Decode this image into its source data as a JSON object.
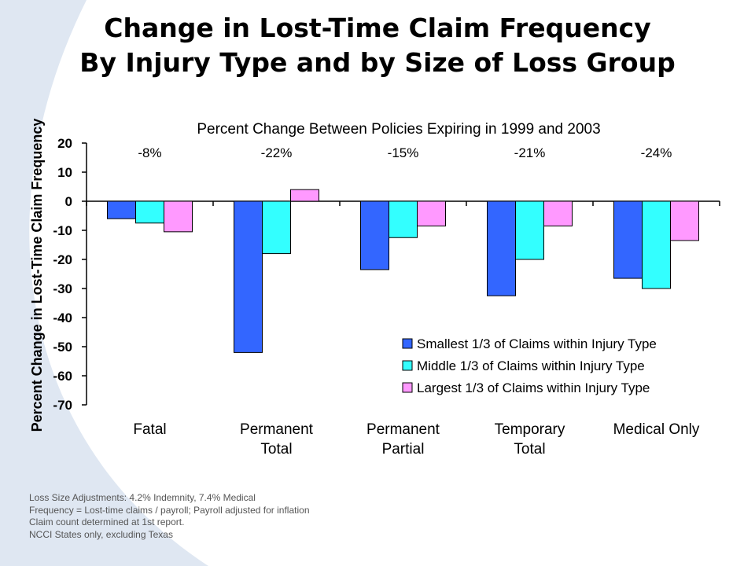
{
  "slide": {
    "title_line1": "Change in Lost-Time Claim Frequency",
    "title_line2": "By Injury Type and by Size of Loss Group",
    "notes": [
      "Loss Size Adjustments: 4.2% Indemnity, 7.4% Medical",
      "Frequency = Lost-time claims / payroll; Payroll adjusted for inflation",
      "Claim count determined at 1st report.",
      "NCCI States only, excluding Texas"
    ],
    "background_color": "#dfe7f2"
  },
  "chart_data": {
    "type": "bar",
    "title": "Percent Change Between Policies Expiring in 1999 and 2003",
    "ylabel": "Percent Change in Lost-Time Claim Frequency",
    "xlabel": "",
    "ylim": [
      -70,
      20
    ],
    "yticks": [
      20,
      10,
      0,
      -10,
      -20,
      -30,
      -40,
      -50,
      -60,
      -70
    ],
    "categories": [
      [
        "Fatal"
      ],
      [
        "Permanent",
        "Total"
      ],
      [
        "Permanent",
        "Partial"
      ],
      [
        "Temporary",
        "Total"
      ],
      [
        "Medical Only"
      ]
    ],
    "group_totals": [
      "-8%",
      "-22%",
      "-15%",
      "-21%",
      "-24%"
    ],
    "series": [
      {
        "name": "Smallest 1/3 of Claims within Injury Type",
        "color": "#3366ff",
        "values": [
          -6,
          -52,
          -23.5,
          -32.5,
          -26.5
        ]
      },
      {
        "name": "Middle 1/3 of Claims within Injury Type",
        "color": "#33ffff",
        "values": [
          -7.5,
          -18,
          -12.5,
          -20,
          -30
        ]
      },
      {
        "name": "Largest 1/3 of Claims within Injury Type",
        "color": "#ff99ff",
        "values": [
          -10.5,
          4,
          -8.5,
          -8.5,
          -13.5
        ]
      }
    ],
    "legend_position": "bottom-right",
    "grid": false
  }
}
